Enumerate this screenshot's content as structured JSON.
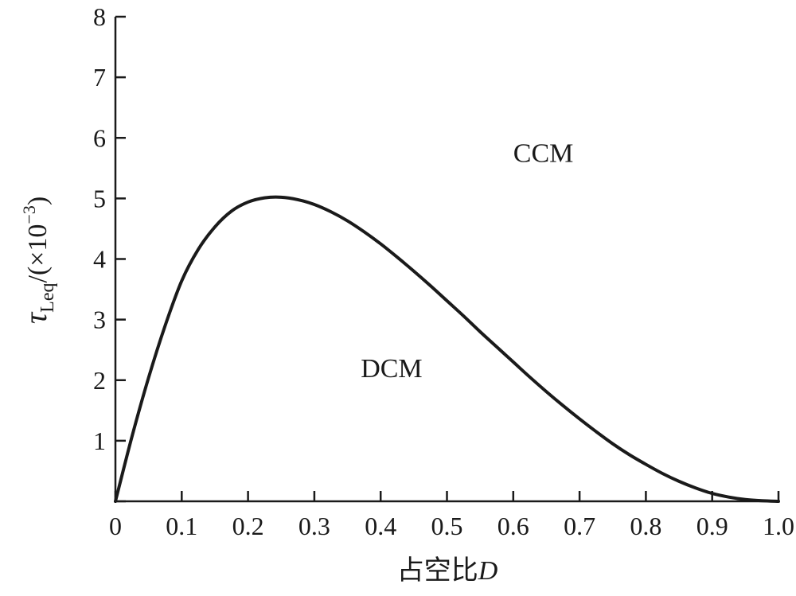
{
  "chart_data": {
    "type": "line",
    "xlim": [
      0,
      1.0
    ],
    "ylim": [
      0,
      8
    ],
    "x_ticks": [
      0,
      0.1,
      0.2,
      0.3,
      0.4,
      0.5,
      0.6,
      0.7,
      0.8,
      0.9,
      1.0
    ],
    "x_tick_labels": [
      "0",
      "0.1",
      "0.2",
      "0.3",
      "0.4",
      "0.5",
      "0.6",
      "0.7",
      "0.8",
      "0.9",
      "1.0"
    ],
    "y_ticks": [
      0,
      1,
      2,
      3,
      4,
      5,
      6,
      7,
      8
    ],
    "y_tick_labels": [
      "",
      "1",
      "2",
      "3",
      "4",
      "5",
      "6",
      "7",
      "8"
    ],
    "xlabel": {
      "main": "占空比",
      "var": "D"
    },
    "ylabel": {
      "symbol": "τ",
      "sub": "Leq",
      "unit_pre": "/(×10",
      "exp": "−3",
      "unit_post": ")"
    },
    "grid": false,
    "series": [
      {
        "x": [
          0,
          0.025,
          0.05,
          0.075,
          0.1,
          0.125,
          0.15,
          0.175,
          0.2,
          0.225,
          0.25,
          0.275,
          0.3,
          0.325,
          0.35,
          0.375,
          0.4,
          0.425,
          0.45,
          0.475,
          0.5,
          0.525,
          0.55,
          0.575,
          0.6,
          0.625,
          0.65,
          0.675,
          0.7,
          0.725,
          0.75,
          0.775,
          0.8,
          0.825,
          0.85,
          0.875,
          0.9,
          0.925,
          0.95,
          0.975,
          1.0
        ],
        "y": [
          0,
          1.07,
          2.04,
          2.9,
          3.64,
          4.16,
          4.53,
          4.79,
          4.94,
          5.01,
          5.02,
          4.98,
          4.9,
          4.78,
          4.63,
          4.45,
          4.25,
          4.03,
          3.8,
          3.56,
          3.31,
          3.06,
          2.8,
          2.55,
          2.3,
          2.05,
          1.81,
          1.58,
          1.36,
          1.15,
          0.95,
          0.77,
          0.61,
          0.46,
          0.33,
          0.22,
          0.13,
          0.07,
          0.03,
          0.01,
          0
        ]
      }
    ],
    "annotations": [
      {
        "text": "CCM",
        "x": 0.6,
        "y": 5.6
      },
      {
        "text": "DCM",
        "x": 0.37,
        "y": 2.05
      }
    ]
  }
}
